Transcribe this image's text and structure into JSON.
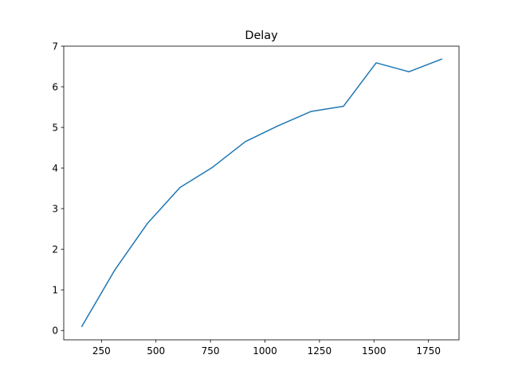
{
  "chart_data": {
    "type": "line",
    "title": "Delay",
    "xlabel": "",
    "ylabel": "",
    "xlim": [
      77,
      1890
    ],
    "ylim": [
      -0.23,
      7.0
    ],
    "x_ticks": [
      250,
      500,
      750,
      1000,
      1250,
      1500,
      1750
    ],
    "y_ticks": [
      0,
      1,
      2,
      3,
      4,
      5,
      6,
      7
    ],
    "grid": false,
    "legend": "none",
    "series": [
      {
        "color": "#1f77b4",
        "x": [
          160,
          310,
          460,
          610,
          760,
          910,
          1060,
          1210,
          1360,
          1510,
          1660,
          1810
        ],
        "y": [
          0.1,
          1.48,
          2.63,
          3.52,
          4.02,
          4.65,
          5.04,
          5.39,
          5.52,
          6.59,
          6.37,
          6.68
        ]
      }
    ]
  }
}
